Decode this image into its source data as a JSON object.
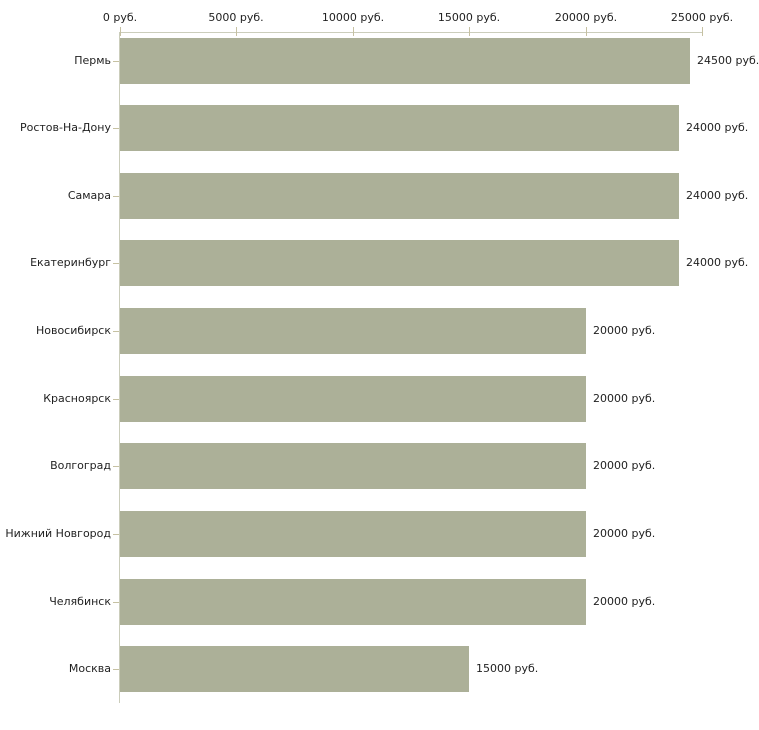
{
  "chart_data": {
    "type": "bar",
    "orientation": "horizontal",
    "title": "",
    "xlabel": "",
    "ylabel": "",
    "xlim": [
      0,
      25000
    ],
    "axis_position": "top",
    "grid": false,
    "legend": null,
    "categories": [
      "Пермь",
      "Ростов-На-Дону",
      "Самара",
      "Екатеринбург",
      "Новосибирск",
      "Красноярск",
      "Волгоград",
      "Нижний Новгород",
      "Челябинск",
      "Москва"
    ],
    "values": [
      24500,
      24000,
      24000,
      24000,
      20000,
      20000,
      20000,
      20000,
      20000,
      15000
    ],
    "value_labels": [
      "24500 руб.",
      "24000 руб.",
      "24000 руб.",
      "24000 руб.",
      "20000 руб.",
      "20000 руб.",
      "20000 руб.",
      "20000 руб.",
      "20000 руб.",
      "15000 руб."
    ],
    "x_ticks": [
      0,
      5000,
      10000,
      15000,
      20000,
      25000
    ],
    "x_tick_labels": [
      "0 руб.",
      "5000 руб.",
      "10000 руб.",
      "15000 руб.",
      "20000 руб.",
      "25000 руб."
    ],
    "colors": {
      "bar": "#acb098",
      "axis_line": "#cbcdbb",
      "tick": "#c6c1a2",
      "text": "#1f1f1f",
      "background": "#ffffff"
    }
  }
}
